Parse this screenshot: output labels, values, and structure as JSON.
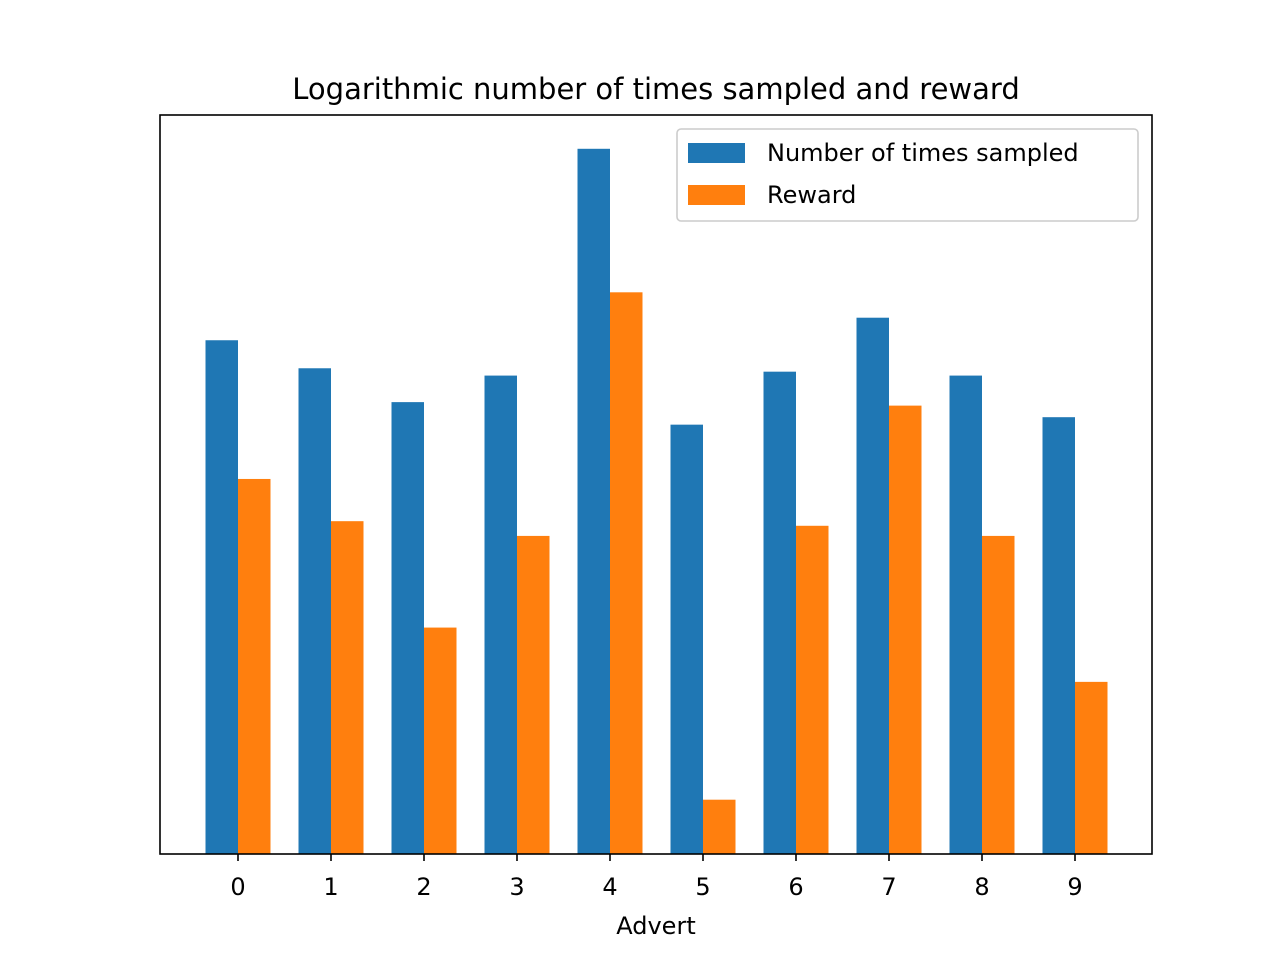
{
  "chart_data": {
    "type": "bar",
    "title": "Logarithmic number of times sampled and reward",
    "xlabel": "Advert",
    "ylabel": "",
    "y_scale": "log",
    "y_ticks_visible": false,
    "categories": [
      "0",
      "1",
      "2",
      "3",
      "4",
      "5",
      "6",
      "7",
      "8",
      "9"
    ],
    "series": [
      {
        "name": "Number of times sampled",
        "color": "#1f77b4",
        "values": [
          705,
          493,
          320,
          449,
          8120,
          240,
          472,
          940,
          449,
          264
        ]
      },
      {
        "name": "Reward",
        "color": "#ff7f0e",
        "values": [
          120,
          70,
          18,
          58,
          1300,
          2,
          66,
          306,
          58,
          9
        ]
      }
    ],
    "legend": {
      "position": "top-right",
      "entries": [
        "Number of times sampled",
        "Reward"
      ]
    },
    "grid": false
  }
}
